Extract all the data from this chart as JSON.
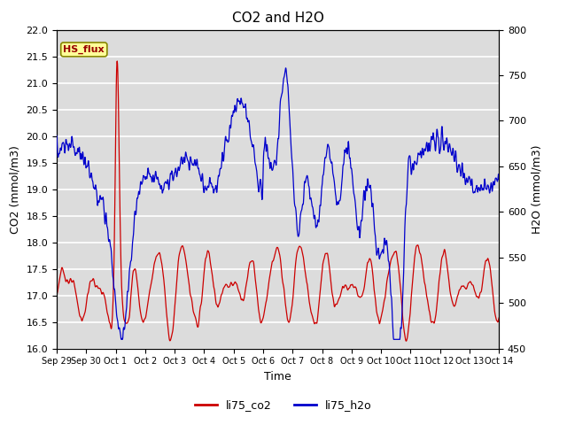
{
  "title": "CO2 and H2O",
  "xlabel": "Time",
  "ylabel_left": "CO2 (mmol/m3)",
  "ylabel_right": "H2O (mmol/m3)",
  "ylim_left": [
    16.0,
    22.0
  ],
  "ylim_right": [
    450,
    800
  ],
  "yticks_left": [
    16.0,
    16.5,
    17.0,
    17.5,
    18.0,
    18.5,
    19.0,
    19.5,
    20.0,
    20.5,
    21.0,
    21.5,
    22.0
  ],
  "yticks_right": [
    450,
    500,
    550,
    600,
    650,
    700,
    750,
    800
  ],
  "xtick_labels": [
    "Sep 29",
    "Sep 30",
    "Oct 1",
    "Oct 2",
    "Oct 3",
    "Oct 4",
    "Oct 5",
    "Oct 6",
    "Oct 7",
    "Oct 8",
    "Oct 9",
    "Oct 10",
    "Oct 11",
    "Oct 12",
    "Oct 13",
    "Oct 14"
  ],
  "color_co2": "#cc0000",
  "color_h2o": "#0000cc",
  "color_bg": "#dcdcdc",
  "legend_labels": [
    "li75_co2",
    "li75_h2o"
  ],
  "annotation_text": "HS_flux",
  "annotation_color": "#990000",
  "annotation_bg": "#ffff99",
  "figsize": [
    6.4,
    4.8
  ],
  "dpi": 100
}
